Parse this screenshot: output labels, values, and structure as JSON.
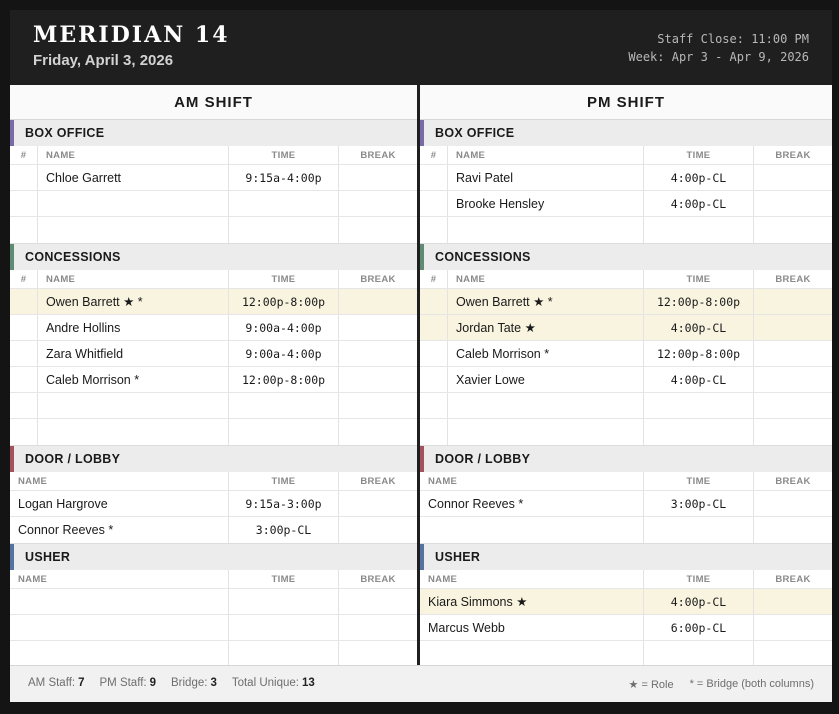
{
  "header": {
    "title": "MERIDIAN 14",
    "date": "Friday, April 3, 2026",
    "staff_close": "Staff Close: 11:00 PM",
    "week": "Week: Apr 3 - Apr 9, 2026"
  },
  "am": {
    "title": "AM SHIFT",
    "box_office": {
      "label": "BOX OFFICE",
      "color": "#7a6aa6",
      "headers": {
        "num": "#",
        "name": "NAME",
        "time": "TIME",
        "break": "BREAK"
      },
      "rows": [
        {
          "name": "Chloe Garrett",
          "time": "9:15a-4:00p",
          "break": ""
        },
        {
          "name": "",
          "time": "",
          "break": ""
        },
        {
          "name": "",
          "time": "",
          "break": ""
        }
      ]
    },
    "concessions": {
      "label": "CONCESSIONS",
      "color": "#5f8a74",
      "headers": {
        "num": "#",
        "name": "NAME",
        "time": "TIME",
        "break": "BREAK"
      },
      "rows": [
        {
          "name": "Owen Barrett ★ *",
          "time": "12:00p-8:00p",
          "break": "",
          "highlight": true
        },
        {
          "name": "Andre Hollins",
          "time": "9:00a-4:00p",
          "break": ""
        },
        {
          "name": "Zara Whitfield",
          "time": "9:00a-4:00p",
          "break": ""
        },
        {
          "name": "Caleb Morrison *",
          "time": "12:00p-8:00p",
          "break": ""
        },
        {
          "name": "",
          "time": "",
          "break": ""
        },
        {
          "name": "",
          "time": "",
          "break": ""
        }
      ]
    },
    "door": {
      "label": "DOOR / LOBBY",
      "color": "#a3525e",
      "headers": {
        "name": "NAME",
        "time": "TIME",
        "break": "BREAK"
      },
      "rows": [
        {
          "name": "Logan Hargrove",
          "time": "9:15a-3:00p",
          "break": ""
        },
        {
          "name": "Connor Reeves *",
          "time": "3:00p-CL",
          "break": ""
        }
      ]
    },
    "usher": {
      "label": "USHER",
      "color": "#5573a0",
      "headers": {
        "name": "NAME",
        "time": "TIME",
        "break": "BREAK"
      },
      "rows": [
        {
          "name": "",
          "time": "",
          "break": ""
        },
        {
          "name": "",
          "time": "",
          "break": ""
        },
        {
          "name": "",
          "time": "",
          "break": ""
        }
      ]
    }
  },
  "pm": {
    "title": "PM SHIFT",
    "box_office": {
      "label": "BOX OFFICE",
      "color": "#7a6aa6",
      "headers": {
        "num": "#",
        "name": "NAME",
        "time": "TIME",
        "break": "BREAK"
      },
      "rows": [
        {
          "name": "Ravi Patel",
          "time": "4:00p-CL",
          "break": ""
        },
        {
          "name": "Brooke Hensley",
          "time": "4:00p-CL",
          "break": ""
        },
        {
          "name": "",
          "time": "",
          "break": ""
        }
      ]
    },
    "concessions": {
      "label": "CONCESSIONS",
      "color": "#5f8a74",
      "headers": {
        "num": "#",
        "name": "NAME",
        "time": "TIME",
        "break": "BREAK"
      },
      "rows": [
        {
          "name": "Owen Barrett ★ *",
          "time": "12:00p-8:00p",
          "break": "",
          "highlight": true
        },
        {
          "name": "Jordan Tate ★",
          "time": "4:00p-CL",
          "break": "",
          "highlight": true
        },
        {
          "name": "Caleb Morrison *",
          "time": "12:00p-8:00p",
          "break": ""
        },
        {
          "name": "Xavier Lowe",
          "time": "4:00p-CL",
          "break": ""
        },
        {
          "name": "",
          "time": "",
          "break": ""
        },
        {
          "name": "",
          "time": "",
          "break": ""
        }
      ]
    },
    "door": {
      "label": "DOOR / LOBBY",
      "color": "#a3525e",
      "headers": {
        "name": "NAME",
        "time": "TIME",
        "break": "BREAK"
      },
      "rows": [
        {
          "name": "Connor Reeves *",
          "time": "3:00p-CL",
          "break": ""
        },
        {
          "name": "",
          "time": "",
          "break": ""
        }
      ]
    },
    "usher": {
      "label": "USHER",
      "color": "#5573a0",
      "headers": {
        "name": "NAME",
        "time": "TIME",
        "break": "BREAK"
      },
      "rows": [
        {
          "name": "Kiara Simmons ★",
          "time": "4:00p-CL",
          "break": "",
          "highlight": true
        },
        {
          "name": "Marcus Webb",
          "time": "6:00p-CL",
          "break": ""
        },
        {
          "name": "",
          "time": "",
          "break": ""
        }
      ]
    }
  },
  "footer": {
    "am_label": "AM Staff:",
    "am_value": "7",
    "pm_label": "PM Staff:",
    "pm_value": "9",
    "bridge_label": "Bridge:",
    "bridge_value": "3",
    "unique_label": "Total Unique:",
    "unique_value": "13",
    "legend_role": "★ = Role",
    "legend_bridge": "* = Bridge (both columns)"
  }
}
